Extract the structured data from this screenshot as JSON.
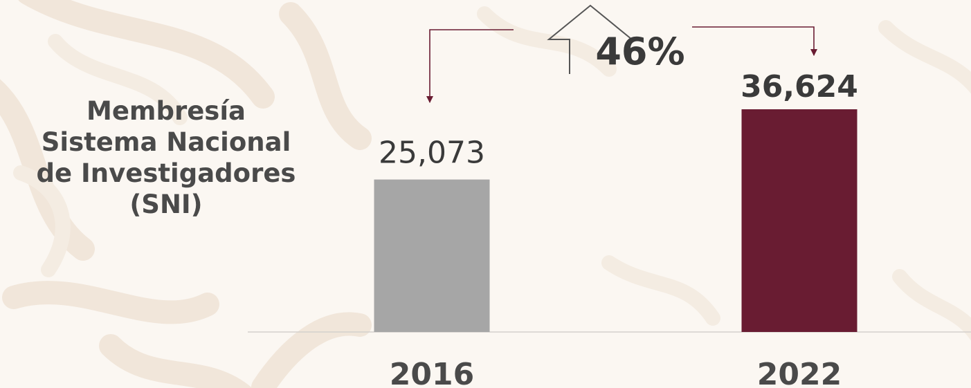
{
  "title_lines": [
    "Membresía",
    "Sistema Nacional",
    "de Investigadores",
    "(SNI)"
  ],
  "chart_data": {
    "type": "bar",
    "categories": [
      "2016",
      "2022"
    ],
    "values": [
      25073,
      36624
    ],
    "value_labels": [
      "25,073",
      "36,624"
    ],
    "colors": [
      "#a6a6a6",
      "#691c32"
    ],
    "growth_label": "46%",
    "arrow_color": "#691c32",
    "grid": false,
    "ylim": [
      0,
      36624
    ]
  }
}
